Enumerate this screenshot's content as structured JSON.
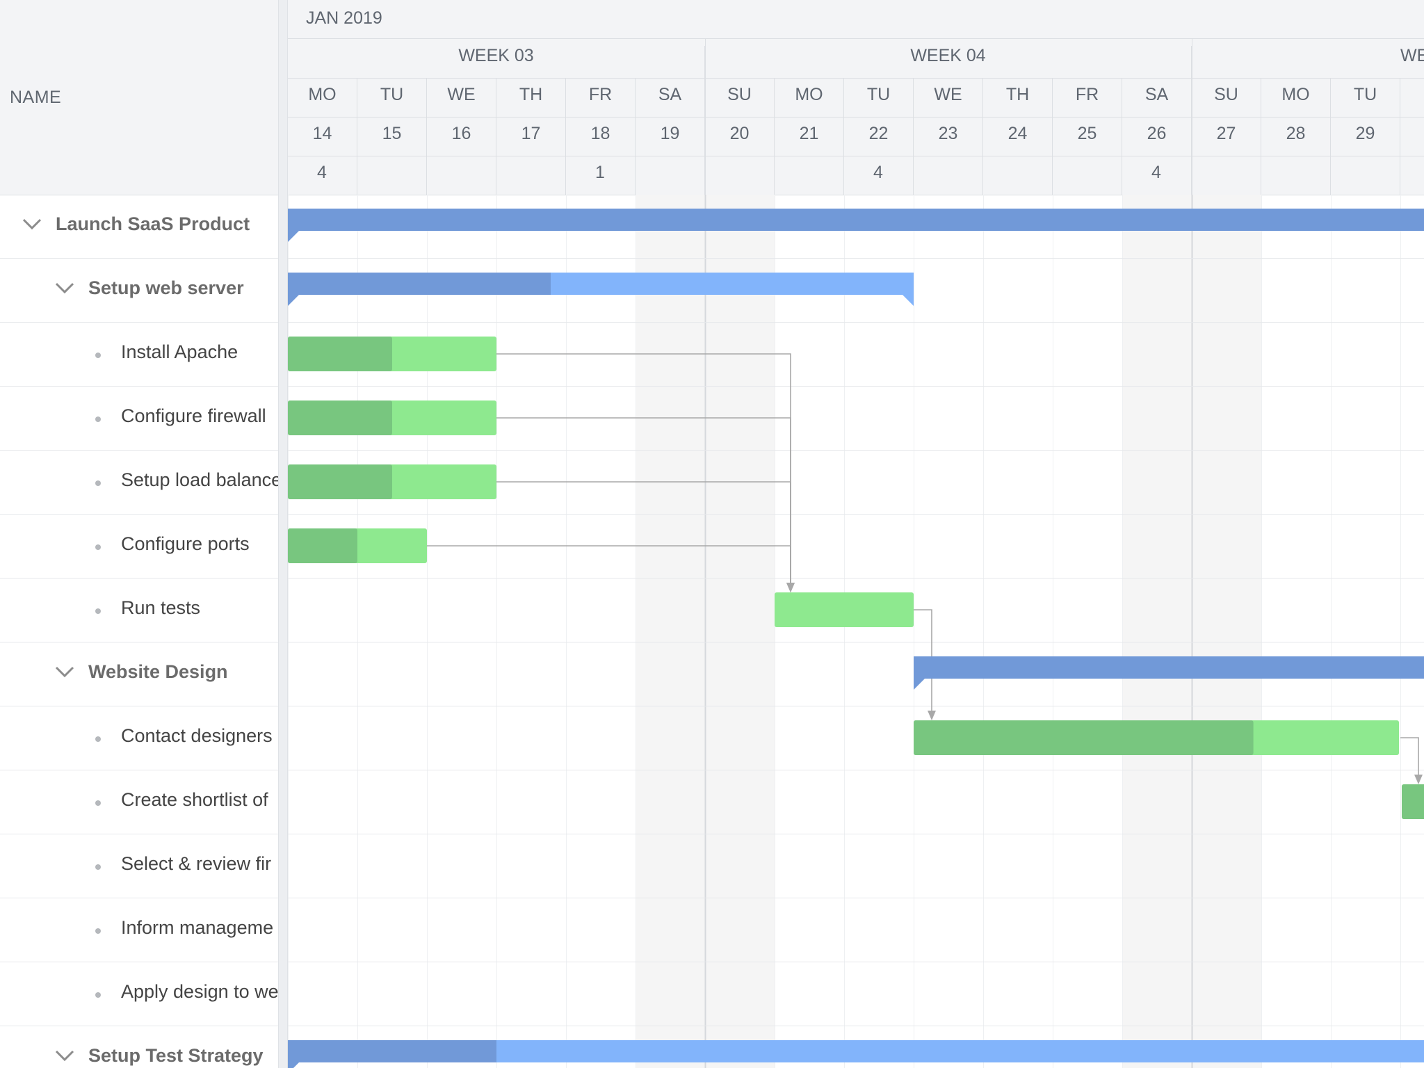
{
  "name_column_label": "NAME",
  "month_label": "JAN 2019",
  "weeks": [
    "WEEK 03",
    "WEEK 04",
    "WE"
  ],
  "days": [
    {
      "dow": "MO",
      "date": "14",
      "count": "4"
    },
    {
      "dow": "TU",
      "date": "15",
      "count": ""
    },
    {
      "dow": "WE",
      "date": "16",
      "count": ""
    },
    {
      "dow": "TH",
      "date": "17",
      "count": ""
    },
    {
      "dow": "FR",
      "date": "18",
      "count": "1"
    },
    {
      "dow": "SA",
      "date": "19",
      "count": ""
    },
    {
      "dow": "SU",
      "date": "20",
      "count": ""
    },
    {
      "dow": "MO",
      "date": "21",
      "count": ""
    },
    {
      "dow": "TU",
      "date": "22",
      "count": "4"
    },
    {
      "dow": "WE",
      "date": "23",
      "count": ""
    },
    {
      "dow": "TH",
      "date": "24",
      "count": ""
    },
    {
      "dow": "FR",
      "date": "25",
      "count": ""
    },
    {
      "dow": "SA",
      "date": "26",
      "count": "4"
    },
    {
      "dow": "SU",
      "date": "27",
      "count": ""
    },
    {
      "dow": "MO",
      "date": "28",
      "count": ""
    },
    {
      "dow": "TU",
      "date": "29",
      "count": ""
    },
    {
      "dow": "",
      "date": "",
      "count": ""
    }
  ],
  "rows": [
    {
      "label": "Launch SaaS Product",
      "type": "group",
      "level": 0
    },
    {
      "label": "Setup web server",
      "type": "group",
      "level": 1
    },
    {
      "label": "Install Apache",
      "type": "task",
      "level": 2
    },
    {
      "label": "Configure firewall",
      "type": "task",
      "level": 2
    },
    {
      "label": "Setup load balancer",
      "type": "task",
      "level": 2
    },
    {
      "label": "Configure ports",
      "type": "task",
      "level": 2
    },
    {
      "label": "Run tests",
      "type": "task",
      "level": 2
    },
    {
      "label": "Website Design",
      "type": "group",
      "level": 1
    },
    {
      "label": "Contact designers",
      "type": "task",
      "level": 2
    },
    {
      "label": "Create shortlist of",
      "type": "task",
      "level": 2
    },
    {
      "label": "Select & review fir",
      "type": "task",
      "level": 2
    },
    {
      "label": "Inform manageme",
      "type": "task",
      "level": 2
    },
    {
      "label": "Apply design to we",
      "type": "task",
      "level": 2
    },
    {
      "label": "Setup Test Strategy",
      "type": "group",
      "level": 1
    }
  ],
  "bars": [
    {
      "row": 0,
      "kind": "parent",
      "start_day": 0,
      "end_day": 20,
      "progress": 1.0
    },
    {
      "row": 1,
      "kind": "parent",
      "start_day": 0,
      "end_day": 9,
      "progress": 0.42
    },
    {
      "row": 2,
      "kind": "task",
      "start_day": 0,
      "end_day": 3,
      "progress": 0.5
    },
    {
      "row": 3,
      "kind": "task",
      "start_day": 0,
      "end_day": 3,
      "progress": 0.5
    },
    {
      "row": 4,
      "kind": "task",
      "start_day": 0,
      "end_day": 3,
      "progress": 0.5
    },
    {
      "row": 5,
      "kind": "task",
      "start_day": 0,
      "end_day": 2,
      "progress": 0.5
    },
    {
      "row": 6,
      "kind": "task",
      "start_day": 7,
      "end_day": 9,
      "progress": 0
    },
    {
      "row": 7,
      "kind": "parent",
      "start_day": 9,
      "end_day": 20,
      "progress": 0.95
    },
    {
      "row": 8,
      "kind": "task",
      "start_day": 9,
      "end_day": 16,
      "progress": 0.7
    },
    {
      "row": 9,
      "kind": "task",
      "start_day": 16,
      "end_day": 19,
      "progress": 1.0
    },
    {
      "row": 13,
      "kind": "parent",
      "start_day": 0,
      "end_day": 20,
      "progress": 0.15
    }
  ],
  "dependencies": [
    {
      "from_row": 2,
      "to_row": 6
    },
    {
      "from_row": 3,
      "to_row": 6
    },
    {
      "from_row": 4,
      "to_row": 6
    },
    {
      "from_row": 5,
      "to_row": 6
    },
    {
      "from_row": 6,
      "to_row": 8
    },
    {
      "from_row": 8,
      "to_row": 9
    }
  ],
  "colors": {
    "parent_done": "#7199d8",
    "parent_todo": "#82b4fb",
    "task_done": "#78c67f",
    "task_todo": "#8ee98f",
    "weekend_bg": "#f5f5f5",
    "dependency_line": "#a8a8a8"
  }
}
